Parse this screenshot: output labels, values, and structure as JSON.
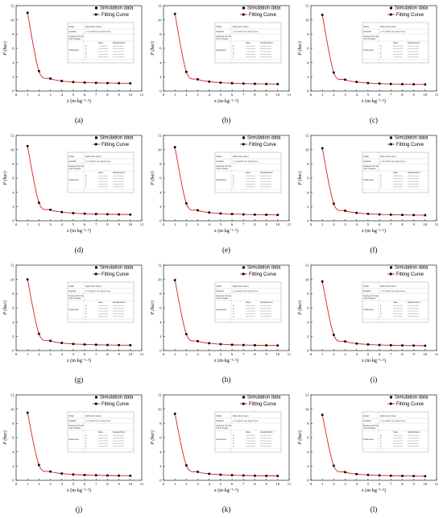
{
  "legend": {
    "points": "Simulation data",
    "curve": "Fitting Curve"
  },
  "xlabel": "z (m·kg⁻¹·⁵)",
  "ylabel": "P (bar)",
  "colors": {
    "curve": "#d62020",
    "points": "#000000",
    "axis": "#000000"
  },
  "fit_table": {
    "rows": [
      "Model",
      "Equation",
      "Reduced Chi-Sqr",
      "Adj. R-Square",
      "Parameters"
    ],
    "model": "MyFunction (User)",
    "equation": "y = a·exp(-b·x)+c·exp(-d·x)+e",
    "cols": [
      "Value",
      "Standard Error"
    ],
    "param_names": [
      "A",
      "b",
      "c",
      "d",
      "e"
    ]
  },
  "chart_data": [
    {
      "label": "(a)",
      "type": "scatter",
      "x": [
        1,
        2,
        3,
        4,
        5,
        6,
        7,
        8,
        9,
        10
      ],
      "values": [
        11.0,
        2.8,
        1.75,
        1.42,
        1.27,
        1.2,
        1.15,
        1.12,
        1.1,
        1.08
      ],
      "xlim": [
        0,
        11
      ],
      "ylim": [
        0,
        12
      ],
      "xticks": [
        0,
        1,
        2,
        3,
        4,
        5,
        6,
        7,
        8,
        9,
        10,
        11
      ],
      "yticks": [
        0,
        2,
        4,
        6,
        8,
        10,
        12
      ]
    },
    {
      "label": "(b)",
      "type": "scatter",
      "x": [
        1,
        2,
        3,
        4,
        5,
        6,
        7,
        8,
        9,
        10
      ],
      "values": [
        10.85,
        2.7,
        1.65,
        1.33,
        1.18,
        1.1,
        1.05,
        1.02,
        1.0,
        0.98
      ],
      "xlim": [
        0,
        11
      ],
      "ylim": [
        0,
        12
      ],
      "xticks": [
        0,
        1,
        2,
        3,
        4,
        5,
        6,
        7,
        8,
        9,
        10,
        11
      ],
      "yticks": [
        0,
        2,
        4,
        6,
        8,
        10,
        12
      ]
    },
    {
      "label": "(c)",
      "type": "scatter",
      "x": [
        1,
        2,
        3,
        4,
        5,
        6,
        7,
        8,
        9,
        10
      ],
      "values": [
        10.7,
        2.6,
        1.6,
        1.28,
        1.13,
        1.05,
        1.0,
        0.97,
        0.95,
        0.93
      ],
      "xlim": [
        0,
        11
      ],
      "ylim": [
        0,
        12
      ],
      "xticks": [
        0,
        1,
        2,
        3,
        4,
        5,
        6,
        7,
        8,
        9,
        10,
        11
      ],
      "yticks": [
        0,
        2,
        4,
        6,
        8,
        10,
        12
      ]
    },
    {
      "label": "(d)",
      "type": "scatter",
      "x": [
        1,
        2,
        3,
        4,
        5,
        6,
        7,
        8,
        9,
        10
      ],
      "values": [
        10.5,
        2.55,
        1.55,
        1.23,
        1.08,
        1.0,
        0.95,
        0.92,
        0.9,
        0.88
      ],
      "xlim": [
        0,
        11
      ],
      "ylim": [
        0,
        12
      ],
      "xticks": [
        0,
        1,
        2,
        3,
        4,
        5,
        6,
        7,
        8,
        9,
        10,
        11
      ],
      "yticks": [
        0,
        2,
        4,
        6,
        8,
        10,
        12
      ]
    },
    {
      "label": "(e)",
      "type": "scatter",
      "x": [
        1,
        2,
        3,
        4,
        5,
        6,
        7,
        8,
        9,
        10
      ],
      "values": [
        10.35,
        2.45,
        1.48,
        1.17,
        1.03,
        0.95,
        0.9,
        0.87,
        0.85,
        0.83
      ],
      "xlim": [
        0,
        11
      ],
      "ylim": [
        0,
        12
      ],
      "xticks": [
        0,
        1,
        2,
        3,
        4,
        5,
        6,
        7,
        8,
        9,
        10,
        11
      ],
      "yticks": [
        0,
        2,
        4,
        6,
        8,
        10,
        12
      ]
    },
    {
      "label": "(f)",
      "type": "scatter",
      "x": [
        1,
        2,
        3,
        4,
        5,
        6,
        7,
        8,
        9,
        10
      ],
      "values": [
        10.2,
        2.4,
        1.42,
        1.12,
        0.98,
        0.9,
        0.86,
        0.83,
        0.81,
        0.79
      ],
      "xlim": [
        0,
        11
      ],
      "ylim": [
        0,
        12
      ],
      "xticks": [
        0,
        1,
        2,
        3,
        4,
        5,
        6,
        7,
        8,
        9,
        10,
        11
      ],
      "yticks": [
        0,
        2,
        4,
        6,
        8,
        10,
        12
      ]
    },
    {
      "label": "(g)",
      "type": "scatter",
      "x": [
        1,
        2,
        3,
        4,
        5,
        6,
        7,
        8,
        9,
        10
      ],
      "values": [
        10.0,
        2.35,
        1.37,
        1.07,
        0.93,
        0.86,
        0.82,
        0.79,
        0.77,
        0.75
      ],
      "xlim": [
        0,
        11
      ],
      "ylim": [
        0,
        12
      ],
      "xticks": [
        0,
        1,
        2,
        3,
        4,
        5,
        6,
        7,
        8,
        9,
        10,
        11
      ],
      "yticks": [
        0,
        2,
        4,
        6,
        8,
        10,
        12
      ]
    },
    {
      "label": "(h)",
      "type": "scatter",
      "x": [
        1,
        2,
        3,
        4,
        5,
        6,
        7,
        8,
        9,
        10
      ],
      "values": [
        9.9,
        2.3,
        1.32,
        1.03,
        0.9,
        0.82,
        0.78,
        0.75,
        0.73,
        0.71
      ],
      "xlim": [
        0,
        11
      ],
      "ylim": [
        0,
        12
      ],
      "xticks": [
        0,
        1,
        2,
        3,
        4,
        5,
        6,
        7,
        8,
        9,
        10,
        11
      ],
      "yticks": [
        0,
        2,
        4,
        6,
        8,
        10,
        12
      ]
    },
    {
      "label": "(i)",
      "type": "scatter",
      "x": [
        1,
        2,
        3,
        4,
        5,
        6,
        7,
        8,
        9,
        10
      ],
      "values": [
        9.7,
        2.2,
        1.28,
        0.99,
        0.86,
        0.79,
        0.75,
        0.72,
        0.7,
        0.68
      ],
      "xlim": [
        0,
        11
      ],
      "ylim": [
        0,
        12
      ],
      "xticks": [
        0,
        1,
        2,
        3,
        4,
        5,
        6,
        7,
        8,
        9,
        10,
        11
      ],
      "yticks": [
        0,
        2,
        4,
        6,
        8,
        10,
        12
      ]
    },
    {
      "label": "(j)",
      "type": "scatter",
      "x": [
        1,
        2,
        3,
        4,
        5,
        6,
        7,
        8,
        9,
        10
      ],
      "values": [
        9.5,
        2.15,
        1.23,
        0.95,
        0.82,
        0.75,
        0.71,
        0.68,
        0.66,
        0.64
      ],
      "xlim": [
        0,
        11
      ],
      "ylim": [
        0,
        12
      ],
      "xticks": [
        0,
        1,
        2,
        3,
        4,
        5,
        6,
        7,
        8,
        9,
        10,
        11
      ],
      "yticks": [
        0,
        2,
        4,
        6,
        8,
        10,
        12
      ]
    },
    {
      "label": "(k)",
      "type": "scatter",
      "x": [
        1,
        2,
        3,
        4,
        5,
        6,
        7,
        8,
        9,
        10
      ],
      "values": [
        9.35,
        2.1,
        1.19,
        0.91,
        0.79,
        0.72,
        0.68,
        0.65,
        0.63,
        0.61
      ],
      "xlim": [
        0,
        11
      ],
      "ylim": [
        0,
        12
      ],
      "xticks": [
        0,
        1,
        2,
        3,
        4,
        5,
        6,
        7,
        8,
        9,
        10,
        11
      ],
      "yticks": [
        0,
        2,
        4,
        6,
        8,
        10,
        12
      ]
    },
    {
      "label": "(l)",
      "type": "scatter",
      "x": [
        1,
        2,
        3,
        4,
        5,
        6,
        7,
        8,
        9,
        10
      ],
      "values": [
        9.2,
        2.05,
        1.15,
        0.88,
        0.76,
        0.69,
        0.65,
        0.62,
        0.6,
        0.58
      ],
      "xlim": [
        0,
        11
      ],
      "ylim": [
        0,
        12
      ],
      "xticks": [
        0,
        1,
        2,
        3,
        4,
        5,
        6,
        7,
        8,
        9,
        10,
        11
      ],
      "yticks": [
        0,
        2,
        4,
        6,
        8,
        10,
        12
      ]
    }
  ]
}
